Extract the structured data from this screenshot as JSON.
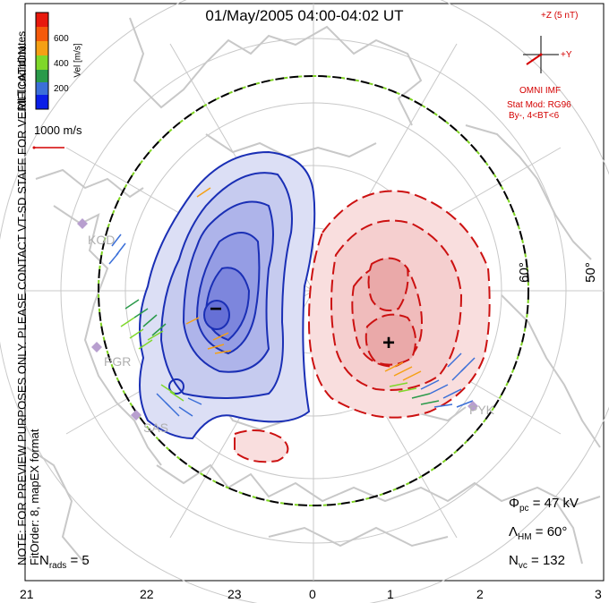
{
  "title": "01/May/2005 04:00-04:02 UT",
  "side_note_line1": "NOTE: FOR PREVIEW PURPOSES ONLY. PLEASE CONTACT VT-SD STAFF FOR VERIFICATION.",
  "side_note_line2": "FitOrder: 8, mapEX format",
  "coord_label": "MLT coordinates",
  "colorbar": {
    "label": "Vel [m/s]",
    "ticks": [
      "600",
      "400",
      "200"
    ],
    "colors": [
      "#e8190d",
      "#f55a0a",
      "#f5a014",
      "#7fd82a",
      "#2a9a4a",
      "#3b6fd8",
      "#0a1ee8"
    ]
  },
  "scale_vector_label": "1000 m/s",
  "imf": {
    "z_label": "+Z (5 nT)",
    "y_label": "+Y",
    "source": "OMNI IMF",
    "model": "Stat Mod: RG96",
    "condition": "By-, 4<BT<6"
  },
  "latitude_labels": [
    "60°",
    "50°"
  ],
  "stations": [
    "KOD",
    "PGR",
    "SAS",
    "PYK"
  ],
  "potential_symbols": {
    "min": "−",
    "max": "+"
  },
  "stats": {
    "phi_pc": "47 kV",
    "lambda_hm": "60°",
    "n_vc": "132",
    "n_rads": "5"
  },
  "mlt_ticks": [
    "21",
    "22",
    "23",
    "0",
    "1",
    "2",
    "3"
  ],
  "colors": {
    "negative_contour": "#1a2fb5",
    "positive_contour": "#cc1111",
    "hm_boundary_a": "#000000",
    "hm_boundary_b": "#7ed321",
    "coastline": "#c8c8c8",
    "imf_vector": "#d40000"
  }
}
